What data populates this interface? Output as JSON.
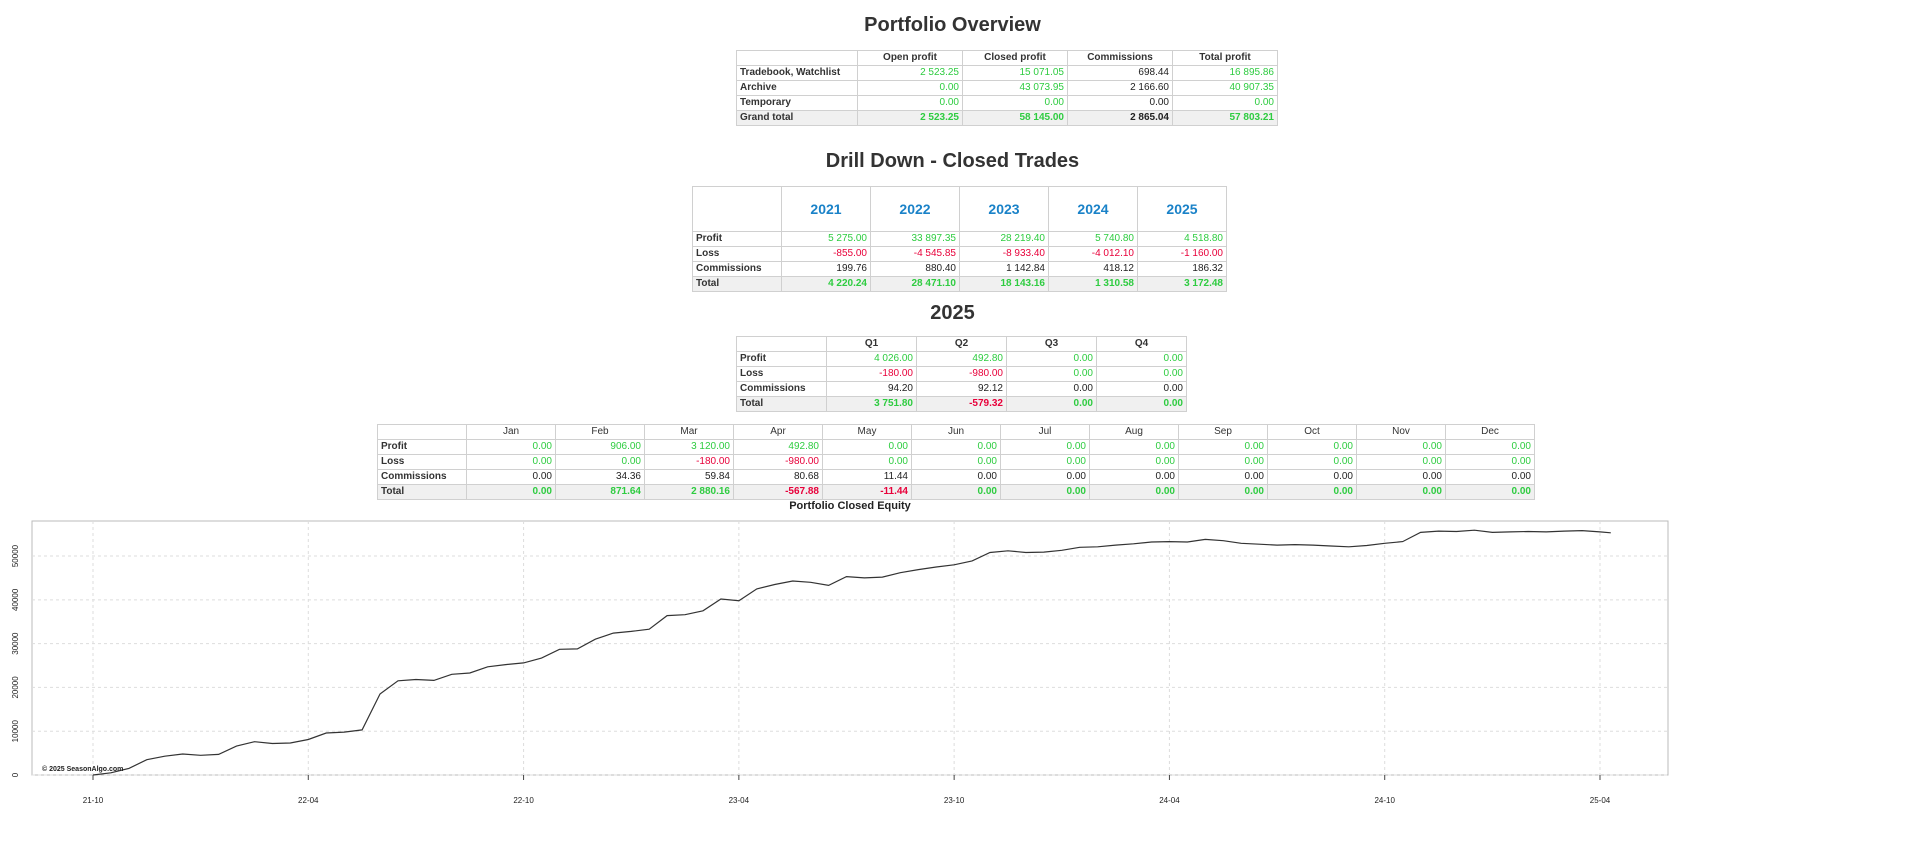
{
  "overview": {
    "title": "Portfolio Overview",
    "headers": [
      "",
      "Open profit",
      "Closed profit",
      "Commissions",
      "Total profit"
    ],
    "rows": [
      {
        "label": "Tradebook, Watchlist",
        "cells": [
          {
            "v": "2 523.25",
            "c": "pos"
          },
          {
            "v": "15 071.05",
            "c": "pos"
          },
          {
            "v": "698.44",
            "c": "neu"
          },
          {
            "v": "16 895.86",
            "c": "pos"
          }
        ]
      },
      {
        "label": "Archive",
        "cells": [
          {
            "v": "0.00",
            "c": "pos"
          },
          {
            "v": "43 073.95",
            "c": "pos"
          },
          {
            "v": "2 166.60",
            "c": "neu"
          },
          {
            "v": "40 907.35",
            "c": "pos"
          }
        ]
      },
      {
        "label": "Temporary",
        "cells": [
          {
            "v": "0.00",
            "c": "pos"
          },
          {
            "v": "0.00",
            "c": "pos"
          },
          {
            "v": "0.00",
            "c": "neu"
          },
          {
            "v": "0.00",
            "c": "pos"
          }
        ]
      }
    ],
    "total": {
      "label": "Grand total",
      "cells": [
        {
          "v": "2 523.25",
          "c": "pos"
        },
        {
          "v": "58 145.00",
          "c": "pos"
        },
        {
          "v": "2 865.04",
          "c": "neu"
        },
        {
          "v": "57 803.21",
          "c": "pos"
        }
      ]
    }
  },
  "drilldown": {
    "title": "Drill Down - Closed Trades",
    "headers": [
      "",
      "2021",
      "2022",
      "2023",
      "2024",
      "2025"
    ],
    "rows": [
      {
        "label": "Profit",
        "cells": [
          {
            "v": "5 275.00",
            "c": "pos"
          },
          {
            "v": "33 897.35",
            "c": "pos"
          },
          {
            "v": "28 219.40",
            "c": "pos"
          },
          {
            "v": "5 740.80",
            "c": "pos"
          },
          {
            "v": "4 518.80",
            "c": "pos"
          }
        ]
      },
      {
        "label": "Loss",
        "cells": [
          {
            "v": "-855.00",
            "c": "neg"
          },
          {
            "v": "-4 545.85",
            "c": "neg"
          },
          {
            "v": "-8 933.40",
            "c": "neg"
          },
          {
            "v": "-4 012.10",
            "c": "neg"
          },
          {
            "v": "-1 160.00",
            "c": "neg"
          }
        ]
      },
      {
        "label": "Commissions",
        "cells": [
          {
            "v": "199.76",
            "c": "neu"
          },
          {
            "v": "880.40",
            "c": "neu"
          },
          {
            "v": "1 142.84",
            "c": "neu"
          },
          {
            "v": "418.12",
            "c": "neu"
          },
          {
            "v": "186.32",
            "c": "neu"
          }
        ]
      }
    ],
    "total": {
      "label": "Total",
      "cells": [
        {
          "v": "4 220.24",
          "c": "pos"
        },
        {
          "v": "28 471.10",
          "c": "pos"
        },
        {
          "v": "18 143.16",
          "c": "pos"
        },
        {
          "v": "1 310.58",
          "c": "pos"
        },
        {
          "v": "3 172.48",
          "c": "pos"
        }
      ]
    }
  },
  "year": {
    "title": "2025",
    "headers": [
      "",
      "Q1",
      "Q2",
      "Q3",
      "Q4"
    ],
    "rows": [
      {
        "label": "Profit",
        "cells": [
          {
            "v": "4 026.00",
            "c": "pos"
          },
          {
            "v": "492.80",
            "c": "pos"
          },
          {
            "v": "0.00",
            "c": "pos"
          },
          {
            "v": "0.00",
            "c": "pos"
          }
        ]
      },
      {
        "label": "Loss",
        "cells": [
          {
            "v": "-180.00",
            "c": "neg"
          },
          {
            "v": "-980.00",
            "c": "neg"
          },
          {
            "v": "0.00",
            "c": "pos"
          },
          {
            "v": "0.00",
            "c": "pos"
          }
        ]
      },
      {
        "label": "Commissions",
        "cells": [
          {
            "v": "94.20",
            "c": "neu"
          },
          {
            "v": "92.12",
            "c": "neu"
          },
          {
            "v": "0.00",
            "c": "neu"
          },
          {
            "v": "0.00",
            "c": "neu"
          }
        ]
      }
    ],
    "total": {
      "label": "Total",
      "cells": [
        {
          "v": "3 751.80",
          "c": "pos"
        },
        {
          "v": "-579.32",
          "c": "neg"
        },
        {
          "v": "0.00",
          "c": "pos"
        },
        {
          "v": "0.00",
          "c": "pos"
        }
      ]
    }
  },
  "months": {
    "headers": [
      "",
      "Jan",
      "Feb",
      "Mar",
      "Apr",
      "May",
      "Jun",
      "Jul",
      "Aug",
      "Sep",
      "Oct",
      "Nov",
      "Dec"
    ],
    "rows": [
      {
        "label": "Profit",
        "cells": [
          {
            "v": "0.00",
            "c": "pos"
          },
          {
            "v": "906.00",
            "c": "pos"
          },
          {
            "v": "3 120.00",
            "c": "pos"
          },
          {
            "v": "492.80",
            "c": "pos"
          },
          {
            "v": "0.00",
            "c": "pos"
          },
          {
            "v": "0.00",
            "c": "pos"
          },
          {
            "v": "0.00",
            "c": "pos"
          },
          {
            "v": "0.00",
            "c": "pos"
          },
          {
            "v": "0.00",
            "c": "pos"
          },
          {
            "v": "0.00",
            "c": "pos"
          },
          {
            "v": "0.00",
            "c": "pos"
          },
          {
            "v": "0.00",
            "c": "pos"
          }
        ]
      },
      {
        "label": "Loss",
        "cells": [
          {
            "v": "0.00",
            "c": "pos"
          },
          {
            "v": "0.00",
            "c": "pos"
          },
          {
            "v": "-180.00",
            "c": "neg"
          },
          {
            "v": "-980.00",
            "c": "neg"
          },
          {
            "v": "0.00",
            "c": "pos"
          },
          {
            "v": "0.00",
            "c": "pos"
          },
          {
            "v": "0.00",
            "c": "pos"
          },
          {
            "v": "0.00",
            "c": "pos"
          },
          {
            "v": "0.00",
            "c": "pos"
          },
          {
            "v": "0.00",
            "c": "pos"
          },
          {
            "v": "0.00",
            "c": "pos"
          },
          {
            "v": "0.00",
            "c": "pos"
          }
        ]
      },
      {
        "label": "Commissions",
        "cells": [
          {
            "v": "0.00",
            "c": "neu"
          },
          {
            "v": "34.36",
            "c": "neu"
          },
          {
            "v": "59.84",
            "c": "neu"
          },
          {
            "v": "80.68",
            "c": "neu"
          },
          {
            "v": "11.44",
            "c": "neu"
          },
          {
            "v": "0.00",
            "c": "neu"
          },
          {
            "v": "0.00",
            "c": "neu"
          },
          {
            "v": "0.00",
            "c": "neu"
          },
          {
            "v": "0.00",
            "c": "neu"
          },
          {
            "v": "0.00",
            "c": "neu"
          },
          {
            "v": "0.00",
            "c": "neu"
          },
          {
            "v": "0.00",
            "c": "neu"
          }
        ]
      }
    ],
    "total": {
      "label": "Total",
      "cells": [
        {
          "v": "0.00",
          "c": "pos"
        },
        {
          "v": "871.64",
          "c": "pos"
        },
        {
          "v": "2 880.16",
          "c": "pos"
        },
        {
          "v": "-567.88",
          "c": "neg"
        },
        {
          "v": "-11.44",
          "c": "neg"
        },
        {
          "v": "0.00",
          "c": "pos"
        },
        {
          "v": "0.00",
          "c": "pos"
        },
        {
          "v": "0.00",
          "c": "pos"
        },
        {
          "v": "0.00",
          "c": "pos"
        },
        {
          "v": "0.00",
          "c": "pos"
        },
        {
          "v": "0.00",
          "c": "pos"
        },
        {
          "v": "0.00",
          "c": "pos"
        }
      ]
    }
  },
  "chart_data": {
    "type": "line",
    "title": "Portfolio Closed Equity",
    "watermark": "© 2025 SeasonAlgo.com",
    "ylim": [
      0,
      58000
    ],
    "yticks": [
      0,
      10000,
      20000,
      30000,
      40000,
      50000
    ],
    "ytick_labels": [
      "0",
      "10000",
      "20000",
      "30000",
      "40000",
      "50000"
    ],
    "xlim": [
      -1.3,
      42
    ],
    "xticks": [
      0,
      6,
      12,
      18,
      24,
      30,
      36,
      42
    ],
    "xtick_labels": [
      "21-10",
      "22-04",
      "22-10",
      "23-04",
      "23-10",
      "24-04",
      "24-10",
      "25-04"
    ],
    "grid": true,
    "series": [
      {
        "name": "Closed equity",
        "color": "#333333",
        "x": [
          0,
          0.5,
          1,
          1.5,
          2,
          2.5,
          3,
          3.5,
          4,
          4.5,
          5,
          5.5,
          6,
          6.5,
          7,
          7.5,
          8,
          8.5,
          9,
          9.5,
          10,
          10.5,
          11,
          11.5,
          12,
          12.5,
          13,
          13.5,
          14,
          14.5,
          15,
          15.5,
          16,
          16.5,
          17,
          17.5,
          18,
          18.5,
          19,
          19.5,
          20,
          20.5,
          21,
          21.5,
          22,
          22.5,
          23,
          23.5,
          24,
          24.5,
          25,
          25.5,
          26,
          26.5,
          27,
          27.5,
          28,
          28.5,
          29,
          29.5,
          30,
          30.5,
          31,
          31.5,
          32,
          32.5,
          33,
          33.5,
          34,
          34.5,
          35,
          35.5,
          36,
          36.5,
          37,
          37.5,
          38,
          38.5,
          39,
          39.5,
          40,
          40.5,
          41,
          41.5,
          42,
          42.3
        ],
        "y": [
          0,
          500,
          1500,
          3500,
          4300,
          4800,
          4500,
          4700,
          6600,
          7600,
          7200,
          7300,
          8100,
          9600,
          9800,
          10300,
          18500,
          21500,
          21800,
          21600,
          23000,
          23300,
          24700,
          25200,
          25600,
          26700,
          28700,
          28800,
          31000,
          32400,
          32800,
          33300,
          36400,
          36600,
          37500,
          40200,
          39800,
          42500,
          43500,
          44300,
          44000,
          43300,
          45300,
          45000,
          45200,
          46200,
          46900,
          47500,
          48000,
          48900,
          50800,
          51200,
          50800,
          50900,
          51300,
          52000,
          52100,
          52500,
          52800,
          53200,
          53300,
          53200,
          53800,
          53500,
          52900,
          52700,
          52500,
          52600,
          52500,
          52300,
          52100,
          52400,
          52900,
          53300,
          55400,
          55700,
          55600,
          55900,
          55400,
          55500,
          55600,
          55500,
          55700,
          55800,
          55500,
          55300
        ]
      }
    ]
  }
}
